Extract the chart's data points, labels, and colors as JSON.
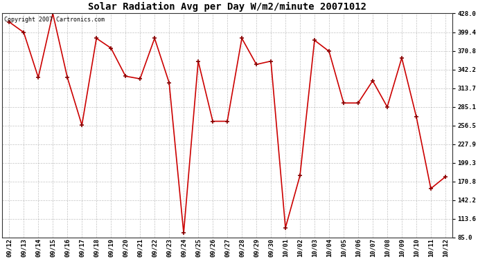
{
  "title": "Solar Radiation Avg per Day W/m2/minute 20071012",
  "copyright": "Copyright 2007 Cartronics.com",
  "labels": [
    "09/12",
    "09/13",
    "09/14",
    "09/15",
    "09/16",
    "09/17",
    "09/18",
    "09/19",
    "09/20",
    "09/21",
    "09/22",
    "09/23",
    "09/24",
    "09/25",
    "09/26",
    "09/27",
    "09/28",
    "09/29",
    "09/30",
    "10/01",
    "10/02",
    "10/03",
    "10/04",
    "10/05",
    "10/06",
    "10/07",
    "10/08",
    "10/09",
    "10/10",
    "10/11",
    "10/12"
  ],
  "values": [
    415.0,
    399.0,
    330.0,
    428.0,
    330.0,
    257.0,
    390.0,
    375.0,
    332.0,
    328.0,
    390.0,
    322.0,
    92.0,
    355.0,
    263.0,
    263.0,
    390.0,
    350.0,
    355.0,
    100.0,
    180.0,
    387.0,
    370.0,
    291.0,
    291.0,
    325.0,
    285.0,
    360.0,
    270.0,
    160.0,
    178.0
  ],
  "yticks": [
    85.0,
    113.6,
    142.2,
    170.8,
    199.3,
    227.9,
    256.5,
    285.1,
    313.7,
    342.2,
    370.8,
    399.4,
    428.0
  ],
  "ymin": 85.0,
  "ymax": 428.0,
  "line_color": "#cc0000",
  "marker_color": "#880000",
  "bg_color": "#ffffff",
  "grid_color": "#999999",
  "title_fontsize": 10,
  "tick_fontsize": 6.5,
  "copyright_fontsize": 6.0
}
